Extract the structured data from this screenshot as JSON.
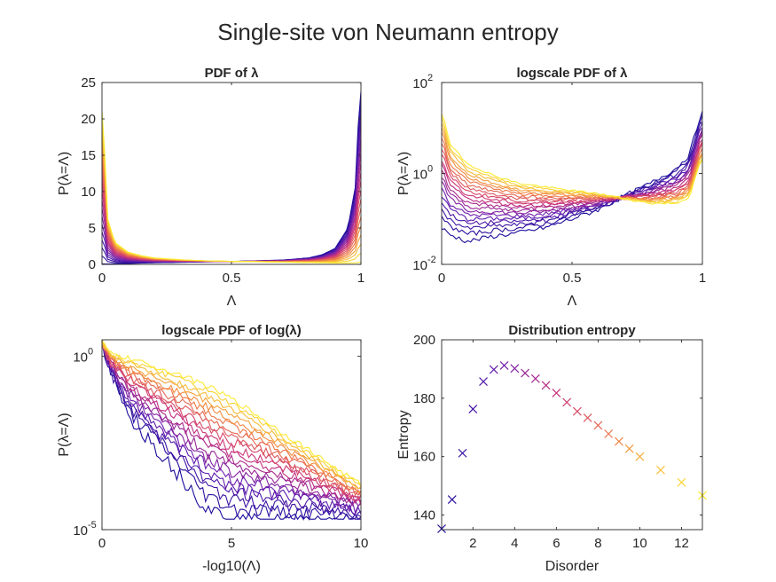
{
  "figure": {
    "title": "Single-site von Neumann entropy"
  },
  "palette": {
    "start": "#1b0c9a",
    "mid1": "#6a1fb0",
    "mid2": "#c8307c",
    "mid3": "#f07a45",
    "end": "#fcea32"
  },
  "chart_data": [
    {
      "id": "pdf",
      "type": "line",
      "title": "PDF of λ",
      "xlabel": "Λ",
      "ylabel": "P(λ=Λ)",
      "xlim": [
        0,
        1
      ],
      "ylim": [
        0,
        25
      ],
      "xticks": [
        "0",
        "0.5",
        "1"
      ],
      "xtick_values": [
        0,
        0.5,
        1
      ],
      "yticks": [
        "0",
        "5",
        "10",
        "15",
        "20",
        "25"
      ],
      "ytick_values": [
        0,
        5,
        10,
        15,
        20,
        25
      ],
      "n_series": 20,
      "series_note": "U-shaped distributions; low disorder (purple) peaks near Λ=1, high disorder (yellow) peaks near Λ=0",
      "x": [
        0.005,
        0.02,
        0.05,
        0.1,
        0.15,
        0.2,
        0.3,
        0.4,
        0.5,
        0.6,
        0.7,
        0.8,
        0.85,
        0.9,
        0.95,
        0.98,
        0.995
      ],
      "series_first": [
        0.05,
        0.05,
        0.08,
        0.12,
        0.18,
        0.22,
        0.28,
        0.35,
        0.4,
        0.5,
        0.6,
        0.9,
        1.3,
        2.2,
        5,
        11,
        24
      ],
      "series_last": [
        21,
        6.5,
        3.0,
        1.7,
        1.2,
        0.9,
        0.65,
        0.5,
        0.42,
        0.36,
        0.3,
        0.25,
        0.22,
        0.2,
        0.2,
        0.22,
        0.3
      ]
    },
    {
      "id": "logpdf",
      "type": "line",
      "title": "logscale PDF of λ",
      "xlabel": "Λ",
      "ylabel": "P(λ=Λ)",
      "xlim": [
        0,
        1
      ],
      "ylim": [
        0.01,
        100
      ],
      "yscale": "log",
      "xticks": [
        "0",
        "0.5",
        "1"
      ],
      "xtick_values": [
        0,
        0.5,
        1
      ],
      "yticks": [
        {
          "base": "10",
          "exp": "-2",
          "value": 0.01
        },
        {
          "base": "10",
          "exp": "0",
          "value": 1
        },
        {
          "base": "10",
          "exp": "2",
          "value": 100
        }
      ],
      "n_series": 20,
      "x": [
        0.005,
        0.03,
        0.1,
        0.2,
        0.3,
        0.4,
        0.5,
        0.6,
        0.7,
        0.8,
        0.9,
        0.95,
        0.995
      ],
      "series_first": [
        0.06,
        0.045,
        0.032,
        0.042,
        0.05,
        0.065,
        0.1,
        0.16,
        0.32,
        0.6,
        1.3,
        2.6,
        22
      ],
      "series_last": [
        21,
        4.5,
        1.6,
        0.9,
        0.6,
        0.5,
        0.42,
        0.36,
        0.28,
        0.22,
        0.22,
        0.3,
        2.0
      ]
    },
    {
      "id": "logpdflog",
      "type": "line",
      "title": "logscale PDF of log(λ)",
      "xlabel": "-log10(Λ)",
      "ylabel": "P(λ=Λ)",
      "xlim": [
        0,
        10
      ],
      "ylim": [
        1e-05,
        3
      ],
      "yscale": "log",
      "xticks": [
        "0",
        "5",
        "10"
      ],
      "xtick_values": [
        0,
        5,
        10
      ],
      "yticks": [
        {
          "base": "10",
          "exp": "0",
          "value": 1
        },
        {
          "base": "10",
          "exp": "-5",
          "value": 1e-05
        }
      ],
      "n_series": 20,
      "x": [
        0.02,
        0.3,
        1,
        2,
        3,
        4,
        5,
        6,
        7,
        8,
        9,
        10
      ],
      "series_first": [
        2.5,
        0.4,
        0.02,
        0.003,
        0.0004,
        5e-05,
        2e-05,
        2e-05,
        2e-05,
        2e-05,
        2e-05,
        2e-05
      ],
      "series_last": [
        2.5,
        1.2,
        0.9,
        0.5,
        0.3,
        0.15,
        0.06,
        0.02,
        0.006,
        0.002,
        0.0006,
        0.0002
      ]
    },
    {
      "id": "entropy",
      "type": "scatter",
      "title": "Distribution entropy",
      "xlabel": "Disorder",
      "ylabel": "Entropy",
      "xlim": [
        0.5,
        13
      ],
      "ylim": [
        135,
        200
      ],
      "xticks": [
        "2",
        "4",
        "6",
        "8",
        "10",
        "12"
      ],
      "xtick_values": [
        2,
        4,
        6,
        8,
        10,
        12
      ],
      "yticks": [
        "140",
        "160",
        "180",
        "200"
      ],
      "ytick_values": [
        140,
        160,
        180,
        200
      ],
      "marker": "x",
      "x": [
        0.5,
        1,
        1.5,
        2,
        2.5,
        3,
        3.5,
        4,
        4.5,
        5,
        5.5,
        6,
        6.5,
        7,
        7.5,
        8,
        8.5,
        9,
        9.5,
        10,
        11,
        12,
        13
      ],
      "y": [
        135.3,
        145.3,
        161.2,
        176.3,
        185.7,
        189.8,
        191.2,
        190.2,
        188.6,
        186.7,
        184.4,
        181.8,
        178.6,
        175.5,
        173.3,
        170.7,
        167.8,
        165.2,
        162.7,
        160.0,
        155.4,
        151.2,
        146.7
      ]
    }
  ]
}
